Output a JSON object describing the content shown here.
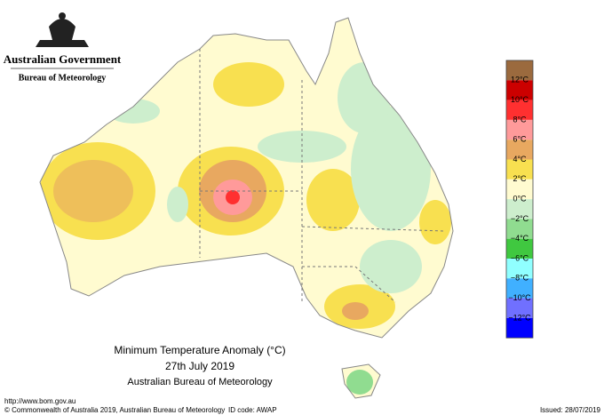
{
  "header": {
    "government": "Australian Government",
    "agency": "Bureau of Meteorology"
  },
  "title": {
    "line1": "Minimum Temperature Anomaly (°C)",
    "line2": "27th July 2019",
    "line3": "Australian Bureau of Meteorology"
  },
  "legend": {
    "colors": [
      "#9b6a3e",
      "#cc0000",
      "#ff3030",
      "#ff9a9a",
      "#e8a860",
      "#f8e050",
      "#fffbd0",
      "#cdeecd",
      "#90dc90",
      "#40c840",
      "#90ffff",
      "#40b0ff",
      "#7070ff",
      "#0000ff"
    ],
    "labels": [
      "12°C",
      "10°C",
      "8°C",
      "6°C",
      "4°C",
      "2°C",
      "0°C",
      "−2°C",
      "−4°C",
      "−6°C",
      "−8°C",
      "−10°C",
      "−12°C"
    ]
  },
  "footer": {
    "url": "http://www.bom.gov.au",
    "copyright": "© Commonwealth of Australia 2019, Australian Bureau of Meteorology",
    "id_code": "ID code: AWAP",
    "issued": "Issued: 28/07/2019"
  }
}
